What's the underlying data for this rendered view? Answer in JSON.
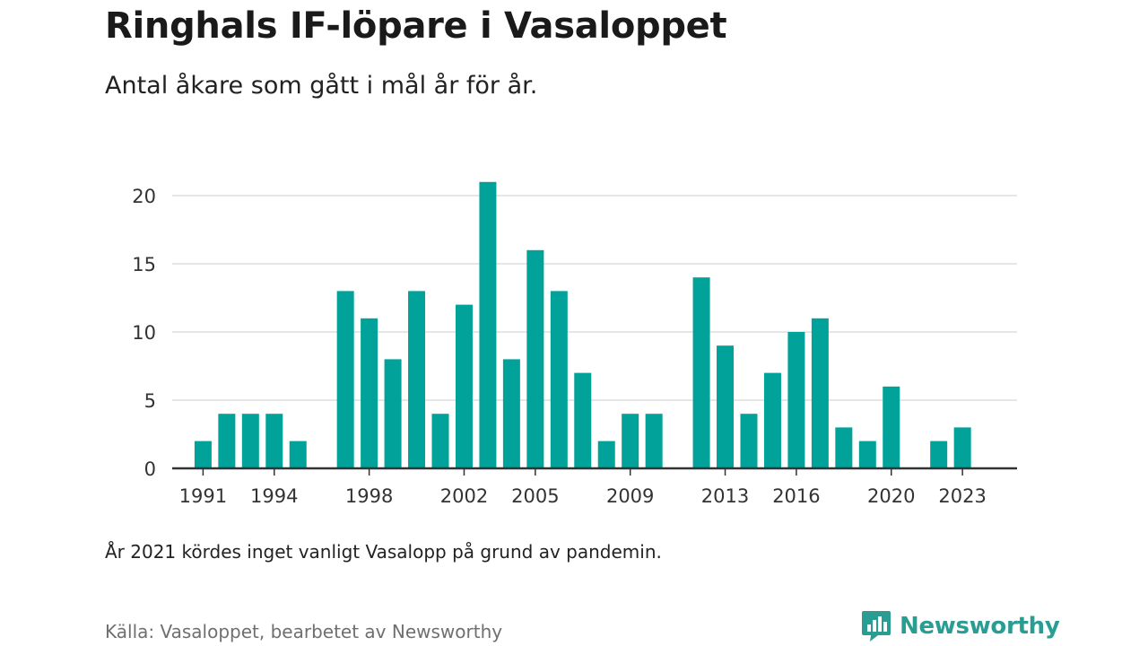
{
  "header": {
    "title": "Ringhals IF-löpare i Vasaloppet",
    "subtitle": "Antal åkare som gått i mål år för år."
  },
  "footer": {
    "note": "År 2021 kördes inget vanligt Vasalopp på grund av pandemin.",
    "source": "Källa: Vasaloppet, bearbetet av Newsworthy",
    "brand": "Newsworthy",
    "brand_icon": "newsworthy-logo-icon"
  },
  "colors": {
    "bar": "#00a29a",
    "brand": "#2a9d93",
    "gridline": "#dddddd",
    "axis": "#333333"
  },
  "chart_data": {
    "type": "bar",
    "title": "Ringhals IF-löpare i Vasaloppet",
    "subtitle": "Antal åkare som gått i mål år för år.",
    "xlabel": "",
    "ylabel": "",
    "ylim": [
      0,
      22
    ],
    "yticks": [
      0,
      5,
      10,
      15,
      20
    ],
    "xrange": [
      1989.7,
      2025.3
    ],
    "xticks": [
      1991,
      1994,
      1998,
      2002,
      2005,
      2009,
      2013,
      2016,
      2020,
      2023
    ],
    "grid": true,
    "legend": "none",
    "x": [
      1991,
      1992,
      1993,
      1994,
      1995,
      1997,
      1998,
      1999,
      2000,
      2001,
      2002,
      2003,
      2004,
      2005,
      2006,
      2007,
      2008,
      2009,
      2010,
      2012,
      2013,
      2014,
      2015,
      2016,
      2017,
      2018,
      2019,
      2020,
      2022,
      2023
    ],
    "values": [
      2,
      4,
      4,
      4,
      2,
      13,
      11,
      8,
      13,
      4,
      12,
      21,
      8,
      16,
      13,
      7,
      2,
      4,
      4,
      14,
      9,
      4,
      7,
      10,
      11,
      3,
      2,
      6,
      2,
      3
    ]
  }
}
